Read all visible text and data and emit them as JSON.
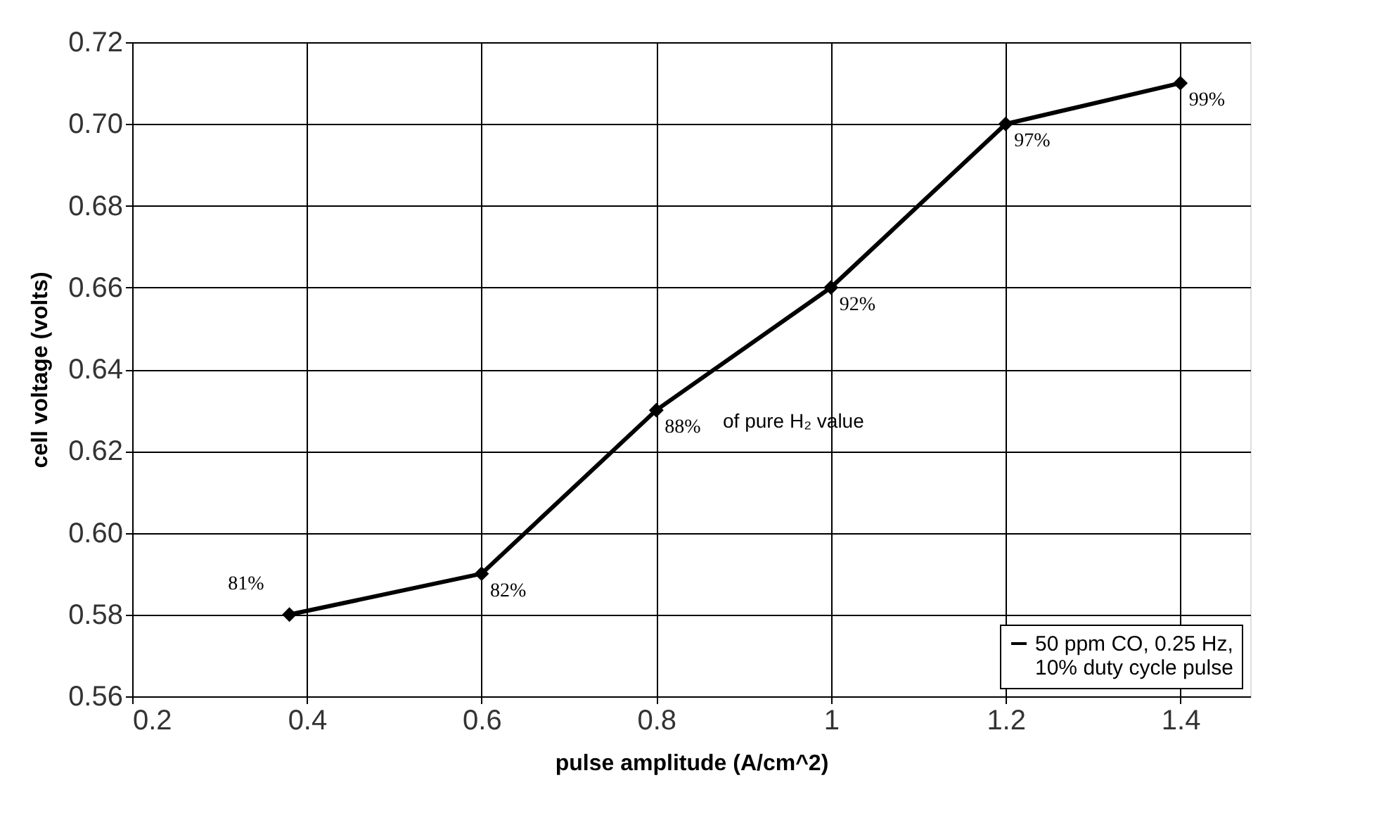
{
  "chart_data": {
    "type": "line",
    "xlabel": "pulse amplitude (A/cm^2)",
    "ylabel": "cell voltage (volts)",
    "x": [
      0.38,
      0.6,
      0.8,
      1.0,
      1.2,
      1.4
    ],
    "series": [
      {
        "name": "50 ppm CO, 0.25 Hz, 10% duty cycle pulse",
        "color": "#000000",
        "values": [
          0.58,
          0.59,
          0.63,
          0.66,
          0.7,
          0.71
        ]
      }
    ],
    "annotations": [
      {
        "text": "81%",
        "x": 0.38,
        "y": 0.58
      },
      {
        "text": "82%",
        "x": 0.6,
        "y": 0.59
      },
      {
        "text": "88%",
        "x": 0.8,
        "y": 0.63
      },
      {
        "text": "92%",
        "x": 1.0,
        "y": 0.66
      },
      {
        "text": "97%",
        "x": 1.2,
        "y": 0.7
      },
      {
        "text": "99%",
        "x": 1.4,
        "y": 0.71
      },
      "of pure H₂ value"
    ],
    "xlim": [
      0.2,
      1.48
    ],
    "ylim": [
      0.56,
      0.72
    ],
    "xticks": [
      0.2,
      0.4,
      0.6,
      0.8,
      1,
      1.2,
      1.4
    ],
    "yticks": [
      {
        "value": 0.56,
        "label": "0.56"
      },
      {
        "value": 0.58,
        "label": "0.58"
      },
      {
        "value": 0.6,
        "label": "0.60"
      },
      {
        "value": 0.62,
        "label": "0.62"
      },
      {
        "value": 0.64,
        "label": "0.64"
      },
      {
        "value": 0.66,
        "label": "0.66"
      },
      {
        "value": 0.68,
        "label": "0.68"
      },
      {
        "value": 0.7,
        "label": "0.70"
      },
      {
        "value": 0.72,
        "label": "0.72"
      }
    ],
    "grid": true,
    "legend": "bottom right",
    "marker": "diamond",
    "line_style": "solid"
  }
}
